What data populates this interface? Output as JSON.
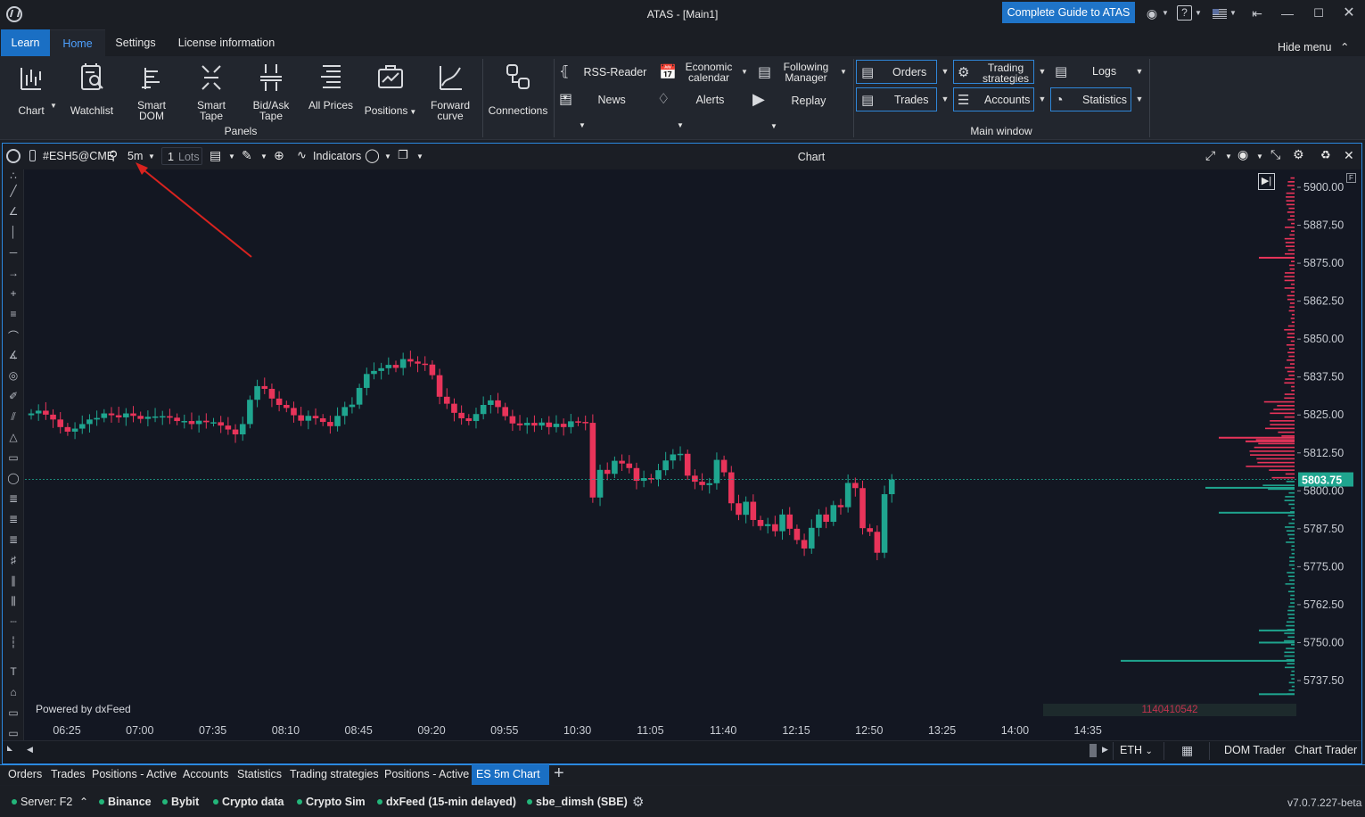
{
  "window": {
    "title": "ATAS - [Main1]",
    "guide_button": "Complete Guide to ATAS"
  },
  "ribbon": {
    "tabs": [
      "Learn",
      "Home",
      "Settings",
      "License information"
    ],
    "hide_menu": "Hide menu",
    "panels_group_label": "Panels",
    "main_window_group_label": "Main window",
    "panel_buttons": [
      {
        "label": "Chart",
        "icon": "chart-icon"
      },
      {
        "label": "Watchlist",
        "icon": "watchlist-icon"
      },
      {
        "label": "Smart DOM",
        "icon": "smart-dom-icon"
      },
      {
        "label": "Smart Tape",
        "icon": "smart-tape-icon"
      },
      {
        "label": "Bid/Ask Tape",
        "icon": "bid-ask-tape-icon"
      },
      {
        "label": "All Prices",
        "icon": "all-prices-icon"
      },
      {
        "label": "Positions",
        "icon": "positions-icon"
      },
      {
        "label": "Forward curve",
        "icon": "forward-curve-icon"
      },
      {
        "label": "Connections",
        "icon": "connections-icon"
      }
    ],
    "small_buttons": {
      "rss": "RSS-Reader",
      "news": "News",
      "economic_calendar": "Economic calendar",
      "alerts": "Alerts",
      "following_manager": "Following Manager",
      "replay": "Replay"
    },
    "main_window_buttons": {
      "orders": "Orders",
      "trades": "Trades",
      "trading_strategies": "Trading strategies",
      "accounts": "Accounts",
      "logs": "Logs",
      "statistics": "Statistics"
    }
  },
  "chart_toolbar": {
    "symbol": "#ESH5@CME",
    "timeframe": "5m",
    "lots_value": "1",
    "lots_unit": "Lots",
    "indicators": "Indicators",
    "title": "Chart"
  },
  "chart": {
    "powered_by": "Powered by dxFeed",
    "last_price": "5803.75",
    "volume_value": "1140410542",
    "price_ticks": [
      "5900.00",
      "5887.50",
      "5875.00",
      "5862.50",
      "5850.00",
      "5837.50",
      "5825.00",
      "5812.50",
      "5800.00",
      "5787.50",
      "5775.00",
      "5762.50",
      "5750.00",
      "5737.50"
    ],
    "time_ticks": [
      "06:25",
      "07:00",
      "07:35",
      "08:10",
      "08:45",
      "09:20",
      "09:55",
      "10:30",
      "11:05",
      "11:40",
      "12:15",
      "12:50",
      "13:25",
      "14:00",
      "14:35"
    ],
    "session": "ETH",
    "dom_trader": "DOM Trader",
    "chart_trader": "Chart Trader",
    "colors": {
      "up": "#1fa58f",
      "down": "#e8345a",
      "background": "#131722",
      "accent": "#2b89e0"
    }
  },
  "chart_data": {
    "type": "candlestick",
    "title": "",
    "ylim": [
      5730,
      5905
    ],
    "x_ticks": [
      "06:25",
      "07:00",
      "07:35",
      "08:10",
      "08:45",
      "09:20",
      "09:55",
      "10:30",
      "11:05",
      "11:40",
      "12:15",
      "12:50",
      "13:25",
      "14:00",
      "14:35"
    ],
    "closes": [
      5825.5,
      5826.4,
      5825.1,
      5823.5,
      5821.0,
      5819.5,
      5820.5,
      5822.0,
      5823.5,
      5824.0,
      5825.5,
      5824.9,
      5824.2,
      5825.5,
      5824.7,
      5823.7,
      5824.4,
      5824.5,
      5824.6,
      5824.1,
      5823.0,
      5823.0,
      5822.0,
      5823.1,
      5822.6,
      5822.6,
      5821.5,
      5820.2,
      5818.6,
      5822.0,
      5830.0,
      5834.5,
      5833.6,
      5830.4,
      5828.3,
      5827.3,
      5824.9,
      5823.1,
      5824.7,
      5823.9,
      5822.7,
      5821.3,
      5824.7,
      5827.6,
      5828.4,
      5833.9,
      5838.5,
      5839.5,
      5840.4,
      5841.5,
      5840.5,
      5843.4,
      5842.6,
      5841.9,
      5841.6,
      5838.1,
      5831.0,
      5828.7,
      5825.7,
      5823.9,
      5823.0,
      5825.3,
      5828.3,
      5829.8,
      5827.6,
      5824.6,
      5822.2,
      5821.6,
      5822.4,
      5821.5,
      5822.5,
      5821.0,
      5822.1,
      5821.0,
      5822.9,
      5822.7,
      5822.4,
      5797.8,
      5806.9,
      5805.6,
      5809.9,
      5809.0,
      5807.5,
      5803.3,
      5804.2,
      5803.9,
      5806.8,
      5810.0,
      5812.0,
      5812.2,
      5805.0,
      5803.0,
      5801.9,
      5802.5,
      5810.2,
      5806.1,
      5795.9,
      5792.1,
      5796.4,
      5790.4,
      5788.4,
      5789.0,
      5786.7,
      5792.2,
      5787.5,
      5783.8,
      5781.0,
      5787.8,
      5792.2,
      5789.8,
      5795.3,
      5794.6,
      5802.6,
      5800.9,
      5787.7,
      5786.5,
      5779.6,
      5798.9,
      5803.75
    ]
  },
  "left_toolbar_icons": [
    "cursor-icon",
    "line-icon",
    "angle-icon",
    "vertical-line-icon",
    "horizontal-line-icon",
    "ray-icon",
    "cross-icon",
    "fib-icon",
    "curve-icon",
    "trend-angle-icon",
    "circle-target-icon",
    "ruler-icon",
    "channel-icon",
    "triangle-icon",
    "rectangle-icon",
    "ellipse-icon",
    "levels-icon",
    "levels-2-icon",
    "levels-3-icon",
    "volume-icon",
    "fan-icon",
    "cluster-icon",
    "dotted-rect-icon",
    "dotted-column-icon",
    "text-icon",
    "tag-icon",
    "label-icon",
    "callout-icon"
  ],
  "bottom_tabs": [
    "Orders",
    "Trades",
    "Positions - Active",
    "Accounts",
    "Statistics",
    "Trading strategies",
    "Positions - Active",
    "ES 5m Chart"
  ],
  "status_bar": {
    "server": "Server: F2",
    "connections": [
      "Binance",
      "Bybit",
      "Crypto data",
      "Crypto Sim",
      "dxFeed (15-min delayed)",
      "sbe_dimsh (SBE)"
    ],
    "version": "v7.0.7.227-beta"
  }
}
